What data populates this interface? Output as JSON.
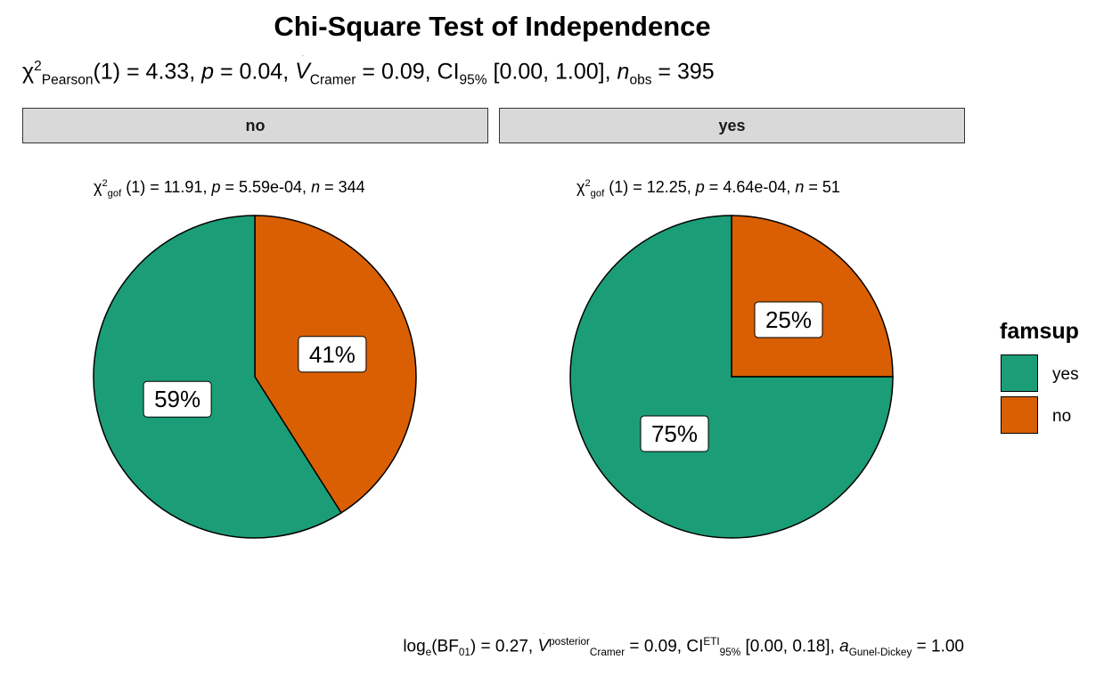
{
  "chart_data": {
    "type": "pie",
    "title": "Chi-Square Test of Independence",
    "subtitle": {
      "stat_symbol": "χ",
      "stat_sup": "2",
      "stat_sub": "Pearson",
      "df": "(1)",
      "stat_value": "4.33",
      "p_value": "0.04",
      "effect_sub": "Cramer",
      "effect_value": "0.09",
      "ci_label": "CI",
      "ci_sub": "95%",
      "ci_range": "[0.00, 1.00]",
      "n_label": "n",
      "n_sub": "obs",
      "n_value": "395"
    },
    "facets": [
      {
        "label": "no",
        "stat_sub": "gof",
        "df": "(1)",
        "stat_value": "11.91",
        "p_value": "5.59e-04",
        "n": "344",
        "slices": [
          {
            "category": "no",
            "percent": 41,
            "label": "41%"
          },
          {
            "category": "yes",
            "percent": 59,
            "label": "59%"
          }
        ]
      },
      {
        "label": "yes",
        "stat_sub": "gof",
        "df": "(1)",
        "stat_value": "12.25",
        "p_value": "4.64e-04",
        "n": "51",
        "slices": [
          {
            "category": "no",
            "percent": 25,
            "label": "25%"
          },
          {
            "category": "yes",
            "percent": 75,
            "label": "75%"
          }
        ]
      }
    ],
    "legend": {
      "title": "famsup",
      "position": "right",
      "entries": [
        {
          "label": "yes",
          "color": "#1b9e77"
        },
        {
          "label": "no",
          "color": "#d95f02"
        }
      ]
    },
    "caption": {
      "log_label": "log",
      "log_sub": "e",
      "bf_label": "BF",
      "bf_sub": "01",
      "bf_value": "0.27",
      "effect_sup": "posterior",
      "effect_sub": "Cramer",
      "effect_value": "0.09",
      "ci_label": "CI",
      "ci_sup": "ETI",
      "ci_sub": "95%",
      "ci_range": "[0.00, 0.18]",
      "a_label": "a",
      "a_sub": "Gunel-Dickey",
      "a_value": "1.00"
    }
  }
}
